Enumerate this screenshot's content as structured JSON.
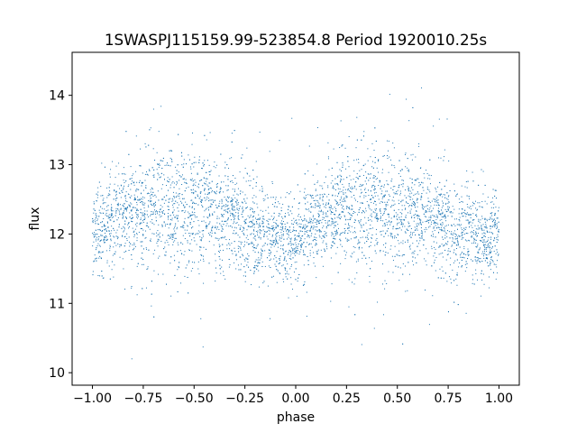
{
  "chart_data": {
    "type": "scatter",
    "title": "1SWASPJ115159.99-523854.8 Period 1920010.25s",
    "xlabel": "phase",
    "ylabel": "flux",
    "xlim": [
      -1.1,
      1.1
    ],
    "ylim": [
      9.82,
      14.62
    ],
    "xticks": [
      -1.0,
      -0.75,
      -0.5,
      -0.25,
      0.0,
      0.25,
      0.5,
      0.75,
      1.0
    ],
    "xtick_labels": [
      "−1.00",
      "−0.75",
      "−0.50",
      "−0.25",
      "0.00",
      "0.25",
      "0.50",
      "0.75",
      "1.00"
    ],
    "yticks": [
      10,
      11,
      12,
      13,
      14
    ],
    "ytick_labels": [
      "10",
      "11",
      "12",
      "13",
      "14"
    ],
    "grid": false,
    "marker_color": "#1f77b4",
    "series": [
      {
        "x": [
          -1.0,
          -0.95,
          -0.9,
          -0.85,
          -0.8,
          -0.75,
          -0.7,
          -0.65,
          -0.6,
          -0.55,
          -0.5,
          -0.45,
          -0.4,
          -0.35,
          -0.3,
          -0.25,
          -0.2,
          -0.15,
          -0.1,
          -0.05,
          0.0,
          0.05,
          0.1,
          0.15,
          0.2,
          0.25,
          0.3,
          0.35,
          0.4,
          0.45,
          0.5,
          0.55,
          0.6,
          0.65,
          0.7,
          0.75,
          0.8,
          0.85,
          0.9,
          0.95,
          1.0
        ],
        "y": [
          12.0,
          12.05,
          12.15,
          12.25,
          12.3,
          12.35,
          12.4,
          12.38,
          12.35,
          12.35,
          12.35,
          12.35,
          12.3,
          12.25,
          12.2,
          12.1,
          12.05,
          12.0,
          11.95,
          11.9,
          11.95,
          12.05,
          12.15,
          12.25,
          12.3,
          12.35,
          12.4,
          12.38,
          12.35,
          12.35,
          12.35,
          12.35,
          12.3,
          12.25,
          12.2,
          12.1,
          12.05,
          12.0,
          11.95,
          11.9,
          12.0
        ],
        "spread": [
          0.3,
          0.3,
          0.3,
          0.35,
          0.35,
          0.4,
          0.5,
          0.45,
          0.4,
          0.45,
          0.4,
          0.45,
          0.4,
          0.35,
          0.35,
          0.4,
          0.3,
          0.3,
          0.3,
          0.3,
          0.3,
          0.3,
          0.3,
          0.35,
          0.35,
          0.4,
          0.5,
          0.45,
          0.4,
          0.45,
          0.4,
          0.45,
          0.4,
          0.35,
          0.35,
          0.4,
          0.3,
          0.3,
          0.3,
          0.3,
          0.3
        ]
      }
    ]
  }
}
